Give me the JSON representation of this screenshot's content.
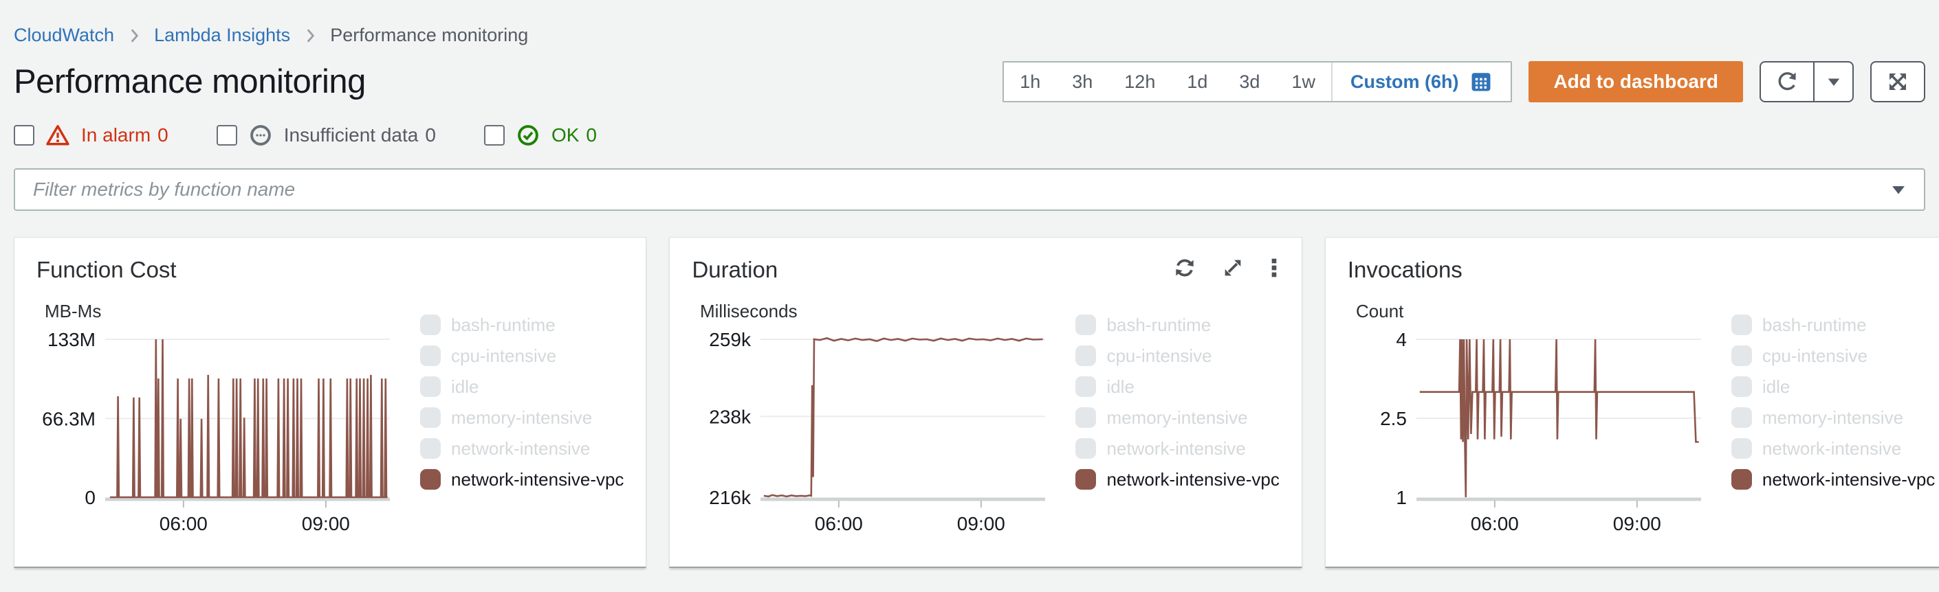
{
  "breadcrumb": {
    "items": [
      {
        "label": "CloudWatch"
      },
      {
        "label": "Lambda Insights"
      },
      {
        "label": "Performance monitoring"
      }
    ]
  },
  "header": {
    "title": "Performance monitoring"
  },
  "time_range": {
    "options": [
      "1h",
      "3h",
      "12h",
      "1d",
      "3d",
      "1w"
    ],
    "custom_label": "Custom (6h)"
  },
  "actions": {
    "add_to_dashboard": "Add to dashboard"
  },
  "alarm_filters": [
    {
      "label": "In alarm",
      "count": "0",
      "state": "alarm"
    },
    {
      "label": "Insufficient data",
      "count": "0",
      "state": "insufficient"
    },
    {
      "label": "OK",
      "count": "0",
      "state": "ok"
    }
  ],
  "filter": {
    "placeholder": "Filter metrics by function name"
  },
  "colors": {
    "series_brown": "#8c564b",
    "accent_orange": "#df7b34",
    "link_blue": "#2e73b8",
    "alarm_red": "#d13212",
    "ok_green": "#1d8102",
    "disabled_swatch": "#e4e7e9",
    "grid": "#ececec",
    "baseline": "#d0d3d4"
  },
  "legend": {
    "items": [
      {
        "label": "bash-runtime",
        "enabled": false
      },
      {
        "label": "cpu-intensive",
        "enabled": false
      },
      {
        "label": "idle",
        "enabled": false
      },
      {
        "label": "memory-intensive",
        "enabled": false
      },
      {
        "label": "network-intensive",
        "enabled": false
      },
      {
        "label": "network-intensive-vpc",
        "enabled": true
      }
    ]
  },
  "chart_data": [
    {
      "type": "line",
      "title": "Function Cost",
      "unit": "MB-Ms",
      "ylabel": "MB-Ms",
      "xlim": [
        4.35,
        10.35
      ],
      "ylim": [
        0,
        133
      ],
      "yticks": [
        [
          133,
          "133M"
        ],
        [
          66.3,
          "66.3M"
        ],
        [
          0,
          "0"
        ]
      ],
      "xticks": [
        [
          6,
          "06:00"
        ],
        [
          9,
          "09:00"
        ]
      ],
      "legend_position": "right",
      "grid": true,
      "series": [
        {
          "name": "network-intensive-vpc",
          "render": "spikes",
          "baseline": 0,
          "line_start": 4.45,
          "line_end": 10.3,
          "spikes": [
            [
              4.62,
              85
            ],
            [
              4.95,
              84
            ],
            [
              5.07,
              84
            ],
            [
              5.42,
              133
            ],
            [
              5.47,
              100
            ],
            [
              5.56,
              133
            ],
            [
              5.88,
              100
            ],
            [
              5.94,
              66
            ],
            [
              6.12,
              100
            ],
            [
              6.18,
              100
            ],
            [
              6.38,
              66
            ],
            [
              6.52,
              103
            ],
            [
              6.74,
              100
            ],
            [
              7.05,
              100
            ],
            [
              7.12,
              100
            ],
            [
              7.2,
              100
            ],
            [
              7.28,
              67
            ],
            [
              7.5,
              100
            ],
            [
              7.57,
              100
            ],
            [
              7.68,
              100
            ],
            [
              7.75,
              100
            ],
            [
              8.0,
              100
            ],
            [
              8.12,
              100
            ],
            [
              8.2,
              100
            ],
            [
              8.32,
              100
            ],
            [
              8.4,
              100
            ],
            [
              8.48,
              100
            ],
            [
              8.85,
              100
            ],
            [
              8.95,
              100
            ],
            [
              9.1,
              100
            ],
            [
              9.45,
              100
            ],
            [
              9.52,
              100
            ],
            [
              9.65,
              100
            ],
            [
              9.72,
              100
            ],
            [
              9.8,
              100
            ],
            [
              9.88,
              100
            ],
            [
              9.95,
              103
            ],
            [
              10.18,
              100
            ],
            [
              10.26,
              100
            ]
          ]
        }
      ]
    },
    {
      "type": "line",
      "title": "Duration",
      "unit": "Milliseconds",
      "ylabel": "Milliseconds",
      "xlim": [
        4.35,
        10.35
      ],
      "ylim": [
        216,
        259
      ],
      "yticks": [
        [
          259,
          "259k"
        ],
        [
          238,
          "238k"
        ],
        [
          216,
          "216k"
        ]
      ],
      "xticks": [
        [
          6,
          "06:00"
        ],
        [
          9,
          "09:00"
        ]
      ],
      "legend_position": "right",
      "grid": true,
      "toolbar": true,
      "series": [
        {
          "name": "network-intensive-vpc",
          "render": "line",
          "points": [
            [
              4.42,
              216.4
            ],
            [
              4.52,
              216.2
            ],
            [
              4.6,
              216.6
            ],
            [
              4.7,
              216.3
            ],
            [
              4.8,
              216.5
            ],
            [
              4.9,
              216.2
            ],
            [
              5.0,
              216.5
            ],
            [
              5.1,
              216.3
            ],
            [
              5.2,
              216.4
            ],
            [
              5.3,
              216.3
            ],
            [
              5.38,
              216.5
            ],
            [
              5.42,
              216.4
            ],
            [
              5.44,
              246.5
            ],
            [
              5.46,
              221.5
            ],
            [
              5.48,
              259.0
            ],
            [
              5.6,
              258.8
            ],
            [
              5.75,
              259.3
            ],
            [
              5.9,
              258.6
            ],
            [
              6.05,
              259.1
            ],
            [
              6.2,
              258.7
            ],
            [
              6.35,
              259.2
            ],
            [
              6.5,
              258.8
            ],
            [
              6.65,
              259.0
            ],
            [
              6.8,
              258.5
            ],
            [
              6.95,
              259.2
            ],
            [
              7.1,
              258.8
            ],
            [
              7.25,
              259.1
            ],
            [
              7.4,
              258.6
            ],
            [
              7.55,
              259.2
            ],
            [
              7.7,
              258.9
            ],
            [
              7.85,
              259.0
            ],
            [
              8.0,
              258.6
            ],
            [
              8.15,
              259.2
            ],
            [
              8.3,
              258.8
            ],
            [
              8.45,
              259.1
            ],
            [
              8.6,
              258.6
            ],
            [
              8.75,
              259.2
            ],
            [
              8.9,
              258.9
            ],
            [
              9.05,
              259.0
            ],
            [
              9.2,
              258.7
            ],
            [
              9.35,
              259.2
            ],
            [
              9.5,
              258.8
            ],
            [
              9.65,
              259.1
            ],
            [
              9.8,
              258.6
            ],
            [
              9.95,
              259.2
            ],
            [
              10.1,
              258.9
            ],
            [
              10.3,
              259.0
            ]
          ]
        }
      ]
    },
    {
      "type": "line",
      "title": "Invocations",
      "unit": "Count",
      "ylabel": "Count",
      "xlim": [
        4.35,
        10.35
      ],
      "ylim": [
        1,
        4
      ],
      "yticks": [
        [
          4,
          "4"
        ],
        [
          2.5,
          "2.5"
        ],
        [
          1,
          "1"
        ]
      ],
      "xticks": [
        [
          6,
          "06:00"
        ],
        [
          9,
          "09:00"
        ]
      ],
      "legend_position": "right",
      "grid": true,
      "series": [
        {
          "name": "network-intensive-vpc",
          "render": "line",
          "points": [
            [
              4.42,
              3
            ],
            [
              5.25,
              3
            ],
            [
              5.27,
              4
            ],
            [
              5.29,
              2.1
            ],
            [
              5.31,
              4
            ],
            [
              5.33,
              2.05
            ],
            [
              5.35,
              4
            ],
            [
              5.37,
              2.1
            ],
            [
              5.39,
              1
            ],
            [
              5.41,
              4
            ],
            [
              5.44,
              2.1
            ],
            [
              5.47,
              4
            ],
            [
              5.5,
              2.2
            ],
            [
              5.53,
              3
            ],
            [
              5.6,
              3
            ],
            [
              5.62,
              4
            ],
            [
              5.64,
              2.1
            ],
            [
              5.66,
              3
            ],
            [
              5.75,
              3
            ],
            [
              5.77,
              4
            ],
            [
              5.79,
              2.1
            ],
            [
              5.81,
              3
            ],
            [
              5.95,
              3
            ],
            [
              5.97,
              4
            ],
            [
              5.99,
              2.1
            ],
            [
              6.01,
              3
            ],
            [
              6.1,
              3
            ],
            [
              6.12,
              4
            ],
            [
              6.14,
              2.15
            ],
            [
              6.16,
              3
            ],
            [
              6.3,
              3
            ],
            [
              6.32,
              4
            ],
            [
              6.34,
              2.1
            ],
            [
              6.36,
              3
            ],
            [
              7.28,
              3
            ],
            [
              7.3,
              4
            ],
            [
              7.32,
              2.1
            ],
            [
              7.34,
              3
            ],
            [
              8.1,
              3
            ],
            [
              8.12,
              4
            ],
            [
              8.14,
              2.1
            ],
            [
              8.16,
              3
            ],
            [
              10.2,
              3
            ],
            [
              10.24,
              2.05
            ],
            [
              10.3,
              2.05
            ]
          ]
        }
      ]
    }
  ]
}
